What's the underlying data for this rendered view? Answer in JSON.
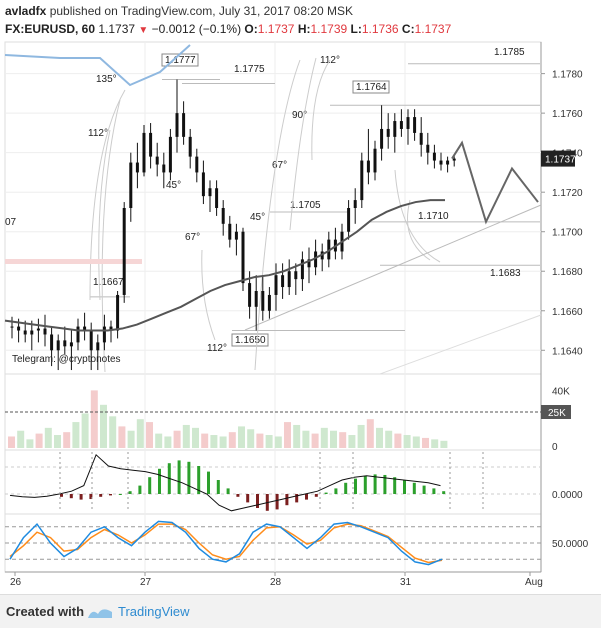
{
  "header": {
    "publisher": "avladfx",
    "published_text": "published on TradingView.com, July 31, 2017 08:20 MSK",
    "symbol": "FX:EURUSD, 60",
    "last": "1.1737",
    "change": "−0.0012 (−0.1%)",
    "o_label": "O:",
    "o_value": "1.1737",
    "h_label": "H:",
    "h_value": "1.1739",
    "l_label": "L:",
    "l_value": "1.1736",
    "c_label": "C:",
    "c_value": "1.1737"
  },
  "watermark": "Telegram: @cryptonotes",
  "price_axis": {
    "ticks": [
      "1.1780",
      "1.1760",
      "1.1740",
      "1.1720",
      "1.1700",
      "1.1680",
      "1.1660",
      "1.1640"
    ],
    "current_label": "1.1737"
  },
  "time_axis": {
    "ticks": [
      "26",
      "27",
      "28",
      "31",
      "Aug"
    ]
  },
  "volume_axis": {
    "ticks": [
      "40K",
      "0"
    ],
    "current_label": "25K"
  },
  "macd_axis": {
    "ticks": [
      "0.0000"
    ]
  },
  "stoch_axis": {
    "ticks": [
      "50.0000"
    ]
  },
  "annotations": {
    "levels": [
      "1.1785",
      "1.1777",
      "1.1775",
      "1.1764",
      "1.1705",
      "1.1710",
      "1.1683",
      "1.1667",
      "1.1650"
    ],
    "angles": [
      "135°",
      "112°",
      "112°",
      "90°",
      "67°",
      "45°",
      "45°",
      "67°",
      "112°"
    ],
    "left_cut_label": "07"
  },
  "footer": {
    "created_with": "Created with",
    "brand": "TradingView"
  },
  "colors": {
    "up": "#000000",
    "down": "#000000",
    "ma": "#555555",
    "blue_line": "#8fb8e0",
    "macd_pos": "#2ca02c",
    "macd_neg": "#7b1f1f",
    "stoch_k": "#1f8be0",
    "stoch_d": "#ff8c1a"
  },
  "chart_data": {
    "type": "candlestick",
    "symbol": "FX:EURUSD",
    "timeframe": "60",
    "x_ticks": [
      "26",
      "27",
      "28",
      "31",
      "Aug"
    ],
    "y_ticks": [
      1.178,
      1.176,
      1.174,
      1.172,
      1.17,
      1.168,
      1.166,
      1.164
    ],
    "ylim": [
      1.1628,
      1.1796
    ],
    "candles": [
      [
        1.1652,
        1.1657,
        1.1646,
        1.1652
      ],
      [
        1.1652,
        1.1656,
        1.1644,
        1.165
      ],
      [
        1.165,
        1.1655,
        1.1644,
        1.1648
      ],
      [
        1.1648,
        1.1655,
        1.164,
        1.165
      ],
      [
        1.165,
        1.1656,
        1.1644,
        1.1651
      ],
      [
        1.1651,
        1.1658,
        1.1642,
        1.1648
      ],
      [
        1.1648,
        1.1652,
        1.1632,
        1.164
      ],
      [
        1.164,
        1.1648,
        1.163,
        1.1645
      ],
      [
        1.1645,
        1.1652,
        1.1638,
        1.1642
      ],
      [
        1.1642,
        1.165,
        1.163,
        1.1644
      ],
      [
        1.1644,
        1.1656,
        1.164,
        1.1652
      ],
      [
        1.1652,
        1.1659,
        1.1645,
        1.165
      ],
      [
        1.165,
        1.1654,
        1.163,
        1.164
      ],
      [
        1.164,
        1.1648,
        1.163,
        1.1644
      ],
      [
        1.1644,
        1.1658,
        1.164,
        1.1652
      ],
      [
        1.1652,
        1.1655,
        1.1644,
        1.165
      ],
      [
        1.165,
        1.167,
        1.1646,
        1.1668
      ],
      [
        1.1668,
        1.1715,
        1.1664,
        1.1712
      ],
      [
        1.1712,
        1.174,
        1.1705,
        1.1735
      ],
      [
        1.1735,
        1.1745,
        1.1722,
        1.173
      ],
      [
        1.173,
        1.1754,
        1.1728,
        1.175
      ],
      [
        1.175,
        1.1755,
        1.1732,
        1.1738
      ],
      [
        1.1738,
        1.1745,
        1.1728,
        1.1734
      ],
      [
        1.1734,
        1.174,
        1.1722,
        1.173
      ],
      [
        1.173,
        1.1752,
        1.1726,
        1.1748
      ],
      [
        1.1748,
        1.1777,
        1.174,
        1.176
      ],
      [
        1.176,
        1.1766,
        1.1744,
        1.1748
      ],
      [
        1.1748,
        1.1752,
        1.1732,
        1.1738
      ],
      [
        1.1738,
        1.1742,
        1.1725,
        1.173
      ],
      [
        1.173,
        1.1736,
        1.1714,
        1.1718
      ],
      [
        1.1718,
        1.1726,
        1.171,
        1.1722
      ],
      [
        1.1722,
        1.1726,
        1.1708,
        1.1712
      ],
      [
        1.1712,
        1.1716,
        1.1698,
        1.1704
      ],
      [
        1.1704,
        1.1708,
        1.1692,
        1.1696
      ],
      [
        1.1696,
        1.1704,
        1.1688,
        1.17
      ],
      [
        1.17,
        1.1702,
        1.167,
        1.1674
      ],
      [
        1.1674,
        1.168,
        1.1656,
        1.1662
      ],
      [
        1.1662,
        1.1678,
        1.165,
        1.167
      ],
      [
        1.167,
        1.1678,
        1.1655,
        1.166
      ],
      [
        1.166,
        1.1672,
        1.1656,
        1.1668
      ],
      [
        1.1668,
        1.1684,
        1.166,
        1.1678
      ],
      [
        1.1678,
        1.1684,
        1.1666,
        1.1672
      ],
      [
        1.1672,
        1.1686,
        1.1668,
        1.168
      ],
      [
        1.168,
        1.1684,
        1.1668,
        1.1676
      ],
      [
        1.1676,
        1.169,
        1.167,
        1.1686
      ],
      [
        1.1686,
        1.1692,
        1.1674,
        1.1682
      ],
      [
        1.1682,
        1.1696,
        1.1678,
        1.169
      ],
      [
        1.169,
        1.1694,
        1.168,
        1.1686
      ],
      [
        1.1686,
        1.17,
        1.1682,
        1.1696
      ],
      [
        1.1696,
        1.1702,
        1.1686,
        1.169
      ],
      [
        1.169,
        1.1704,
        1.1686,
        1.17
      ],
      [
        1.17,
        1.1716,
        1.1696,
        1.1712
      ],
      [
        1.1712,
        1.1722,
        1.1704,
        1.1716
      ],
      [
        1.1716,
        1.174,
        1.1712,
        1.1736
      ],
      [
        1.1736,
        1.1752,
        1.1724,
        1.173
      ],
      [
        1.173,
        1.1746,
        1.1726,
        1.1742
      ],
      [
        1.1742,
        1.1764,
        1.1736,
        1.1752
      ],
      [
        1.1752,
        1.176,
        1.1742,
        1.1748
      ],
      [
        1.1748,
        1.176,
        1.174,
        1.1756
      ],
      [
        1.1756,
        1.1762,
        1.1748,
        1.1752
      ],
      [
        1.1752,
        1.1762,
        1.1744,
        1.1758
      ],
      [
        1.1758,
        1.1762,
        1.1746,
        1.175
      ],
      [
        1.175,
        1.1758,
        1.1738,
        1.1744
      ],
      [
        1.1744,
        1.175,
        1.1734,
        1.174
      ],
      [
        1.174,
        1.1744,
        1.1732,
        1.1736
      ],
      [
        1.1736,
        1.174,
        1.1731,
        1.1734
      ],
      [
        1.1734,
        1.1738,
        1.173,
        1.1736
      ],
      [
        1.1736,
        1.1739,
        1.1733,
        1.1737
      ]
    ],
    "moving_average": [
      1.1655,
      1.1654,
      1.1653,
      1.1652,
      1.1651,
      1.165,
      1.165,
      1.165,
      1.1651,
      1.1653,
      1.1656,
      1.1659,
      1.1662,
      1.1666,
      1.167,
      1.1673,
      1.1675,
      1.1677,
      1.1678,
      1.168,
      1.1683,
      1.1686,
      1.169,
      1.1695,
      1.17,
      1.1706,
      1.171,
      1.1713,
      1.1715,
      1.1716,
      1.1716
    ],
    "levels": [
      1.1785,
      1.1777,
      1.1775,
      1.1764,
      1.171,
      1.1705,
      1.1683,
      1.1667,
      1.165
    ],
    "projection": [
      1.1737,
      1.1745,
      1.1705,
      1.1732,
      1.1715
    ],
    "volume": [
      8,
      12,
      6,
      10,
      14,
      9,
      11,
      18,
      24,
      40,
      30,
      22,
      15,
      12,
      20,
      18,
      10,
      8,
      12,
      16,
      14,
      10,
      9,
      8,
      11,
      15,
      13,
      10,
      9,
      8,
      18,
      16,
      12,
      10,
      14,
      12,
      11,
      9,
      16,
      20,
      14,
      12,
      10,
      9,
      8,
      7,
      6,
      5
    ],
    "volume_level": 25,
    "macd_hist": [
      -0.1,
      -0.15,
      -0.2,
      -0.18,
      -0.1,
      -0.05,
      0,
      0.1,
      0.3,
      0.6,
      0.9,
      1.1,
      1.2,
      1.15,
      1.0,
      0.8,
      0.5,
      0.2,
      -0.1,
      -0.3,
      -0.5,
      -0.6,
      -0.55,
      -0.4,
      -0.3,
      -0.2,
      -0.1,
      0.05,
      0.2,
      0.4,
      0.55,
      0.65,
      0.7,
      0.68,
      0.6,
      0.5,
      0.4,
      0.3,
      0.2,
      0.1
    ],
    "macd_line": [
      -0.05,
      -0.1,
      -0.12,
      -0.08,
      0.0,
      0.1,
      0.3,
      1.4,
      1.0,
      0.9,
      0.85,
      0.8,
      0.7,
      0.55,
      0.4,
      0.2,
      0.0,
      -0.4,
      -0.6,
      -0.5,
      -0.4,
      -0.3,
      -0.2,
      -0.1,
      0.0,
      0.1,
      0.3,
      0.5,
      0.6,
      0.65,
      0.6,
      0.55,
      0.5,
      0.45,
      0.4,
      0.3
    ],
    "stoch_k": [
      20,
      60,
      85,
      50,
      25,
      40,
      70,
      80,
      60,
      45,
      70,
      90,
      88,
      70,
      40,
      20,
      15,
      30,
      70,
      85,
      80,
      60,
      40,
      60,
      85,
      88,
      80,
      70,
      60,
      35,
      15,
      10,
      20
    ],
    "stoch_d": [
      25,
      45,
      70,
      60,
      35,
      38,
      60,
      75,
      65,
      50,
      65,
      85,
      85,
      75,
      50,
      28,
      20,
      25,
      55,
      78,
      80,
      65,
      48,
      55,
      78,
      85,
      82,
      72,
      62,
      42,
      22,
      14,
      18
    ]
  }
}
